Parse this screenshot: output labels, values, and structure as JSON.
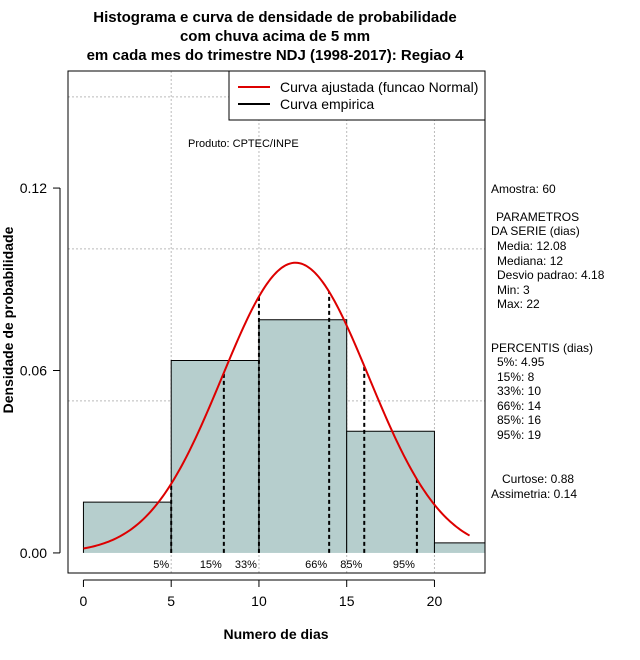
{
  "chart_data": {
    "type": "bar",
    "title_lines": [
      "Histograma e curva de densidade de probabilidade",
      "com chuva acima de 5 mm",
      "em cada mes do trimestre NDJ (1998-2017): Regiao 4"
    ],
    "xlabel": "Numero de dias",
    "ylabel": "Densidade de probabilidade",
    "xlim": [
      -0.88,
      22.88
    ],
    "ylim": [
      -0.0066,
      0.1585
    ],
    "x_ticks": [
      0,
      5,
      10,
      15,
      20
    ],
    "y_ticks": [
      0.0,
      0.06,
      0.12
    ],
    "y_tick_labels": [
      "0.00",
      "0.06",
      "0.12"
    ],
    "grid_x": [
      5,
      10,
      15,
      20
    ],
    "grid_y": [
      0.05,
      0.1,
      0.15
    ],
    "bins": [
      {
        "start": 0,
        "end": 5,
        "density": 0.0167
      },
      {
        "start": 5,
        "end": 10,
        "density": 0.0633
      },
      {
        "start": 10,
        "end": 15,
        "density": 0.0767
      },
      {
        "start": 15,
        "end": 20,
        "density": 0.04
      },
      {
        "start": 20,
        "end": 25,
        "density": 0.0033
      }
    ],
    "fitted_curve": {
      "name": "Curva ajustada (funcao Normal)",
      "mean": 12.08,
      "sd": 4.18,
      "from": 0,
      "to": 22,
      "color": "#dd0000"
    },
    "empirical_curve": {
      "name": "Curva empirica",
      "color": "#000000"
    },
    "percentile_lines": [
      {
        "label": "5%",
        "x": 5
      },
      {
        "label": "15%",
        "x": 8
      },
      {
        "label": "33%",
        "x": 10
      },
      {
        "label": "66%",
        "x": 14
      },
      {
        "label": "85%",
        "x": 16
      },
      {
        "label": "95%",
        "x": 19
      }
    ],
    "annotation": "Produto: CPTEC/INPE",
    "legend_position": "top-right",
    "bar_fill": "#b6cecd",
    "bar_stroke": "#000000",
    "grid_color": "#bbbbbb",
    "side_info": {
      "sample": "Amostra: 60",
      "params_title": [
        "PARAMETROS",
        "DA SERIE (dias)"
      ],
      "params": [
        "Media: 12.08",
        "Mediana: 12",
        "Desvio padrao: 4.18",
        "Min: 3",
        "Max: 22"
      ],
      "percentis_title": "PERCENTIS (dias)",
      "percentis": [
        "5%: 4.95",
        "15%: 8",
        "33%: 10",
        "66%: 14",
        "85%: 16",
        "95%: 19"
      ],
      "shape": [
        "Curtose: 0.88",
        "Assimetria: 0.14"
      ]
    }
  }
}
